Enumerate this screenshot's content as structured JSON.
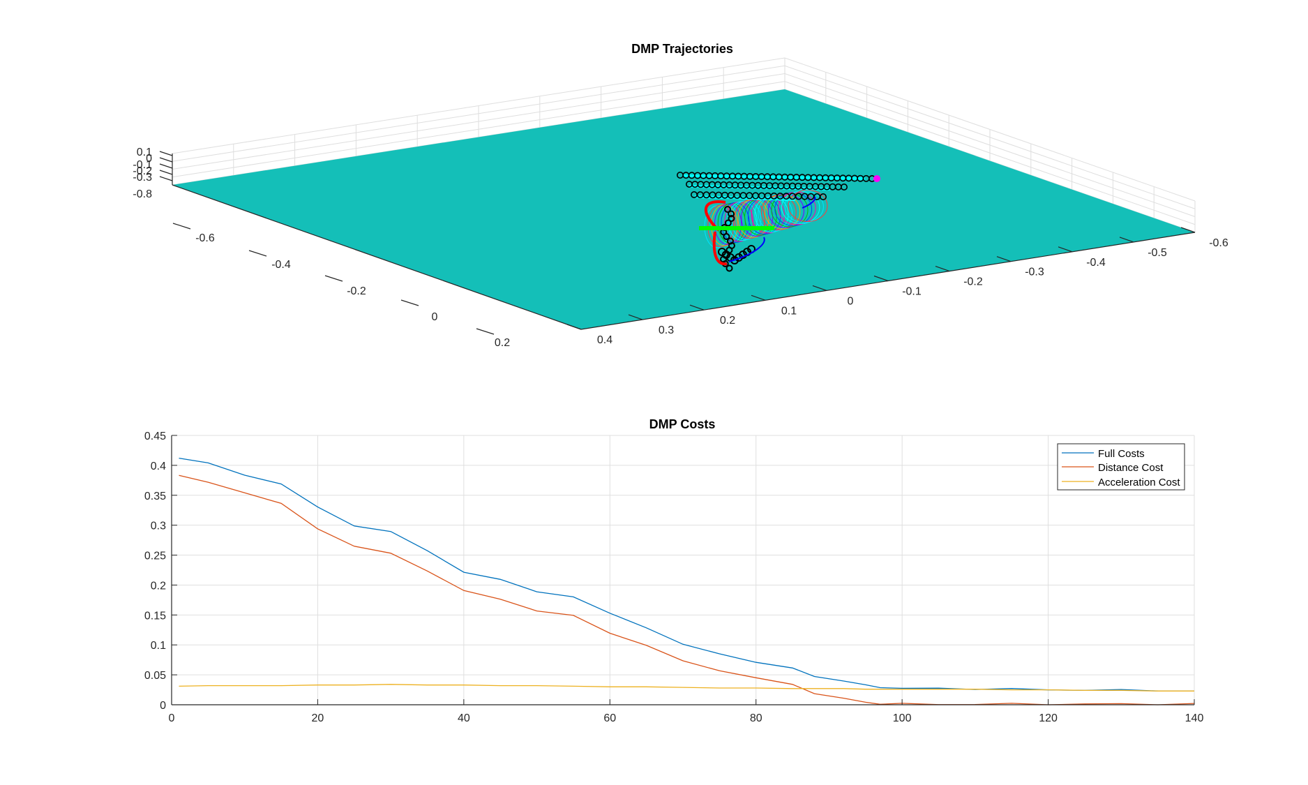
{
  "chart_data": [
    {
      "type": "surface3d",
      "title": "DMP Trajectories",
      "x_ticks": [
        "0.4",
        "0.3",
        "0.2",
        "0.1",
        "0",
        "-0.1",
        "-0.2",
        "-0.3",
        "-0.4",
        "-0.5",
        "-0.6"
      ],
      "y_ticks": [
        "0.2",
        "0",
        "-0.2",
        "-0.4",
        "-0.6"
      ],
      "z_ticks": [
        "0.1",
        "0",
        "-0.1",
        "-0.2",
        "-0.3",
        "-0.8"
      ],
      "plane_color": "#14bfb8",
      "trajectory_colors": [
        "#000000",
        "#00ffff",
        "#ff0000",
        "#0000ff",
        "#00ff00",
        "#ff00ff"
      ],
      "grid": true
    },
    {
      "type": "line",
      "title": "DMP Costs",
      "xlabel": "",
      "ylabel": "",
      "xlim": [
        0,
        140
      ],
      "ylim": [
        0,
        0.45
      ],
      "x_ticks": [
        0,
        20,
        40,
        60,
        80,
        100,
        120,
        140
      ],
      "y_ticks": [
        0,
        0.05,
        0.1,
        0.15,
        0.2,
        0.25,
        0.3,
        0.35,
        0.4,
        0.45
      ],
      "y_tick_labels": [
        "0",
        "0.05",
        "0.1",
        "0.15",
        "0.2",
        "0.25",
        "0.3",
        "0.35",
        "0.4",
        "0.45"
      ],
      "grid": true,
      "legend_position": "top-right",
      "x": [
        1,
        5,
        10,
        15,
        20,
        25,
        30,
        35,
        40,
        45,
        50,
        55,
        60,
        65,
        70,
        75,
        80,
        85,
        88,
        92,
        95,
        97,
        100,
        105,
        110,
        115,
        120,
        125,
        130,
        135,
        140
      ],
      "series": [
        {
          "name": "Full Costs",
          "color": "#0072bd",
          "values": [
            0.412,
            0.403,
            0.385,
            0.368,
            0.33,
            0.3,
            0.288,
            0.258,
            0.222,
            0.208,
            0.19,
            0.18,
            0.152,
            0.13,
            0.1,
            0.085,
            0.072,
            0.06,
            0.048,
            0.04,
            0.032,
            0.03,
            0.027,
            0.027,
            0.027,
            0.026,
            0.025,
            0.025,
            0.024,
            0.024,
            0.023
          ]
        },
        {
          "name": "Distance Cost",
          "color": "#d95319",
          "values": [
            0.382,
            0.372,
            0.355,
            0.335,
            0.295,
            0.265,
            0.252,
            0.225,
            0.19,
            0.176,
            0.158,
            0.148,
            0.12,
            0.1,
            0.072,
            0.058,
            0.045,
            0.033,
            0.02,
            0.01,
            0.004,
            0.002,
            0.001,
            0.001,
            0.001,
            0.001,
            0.001,
            0.001,
            0.001,
            0.001,
            0.001
          ]
        },
        {
          "name": "Acceleration Cost",
          "color": "#edb120",
          "values": [
            0.031,
            0.032,
            0.032,
            0.032,
            0.033,
            0.033,
            0.034,
            0.033,
            0.033,
            0.032,
            0.032,
            0.031,
            0.03,
            0.03,
            0.029,
            0.028,
            0.028,
            0.027,
            0.027,
            0.027,
            0.026,
            0.026,
            0.026,
            0.026,
            0.026,
            0.025,
            0.025,
            0.024,
            0.024,
            0.023,
            0.023
          ]
        }
      ]
    }
  ]
}
